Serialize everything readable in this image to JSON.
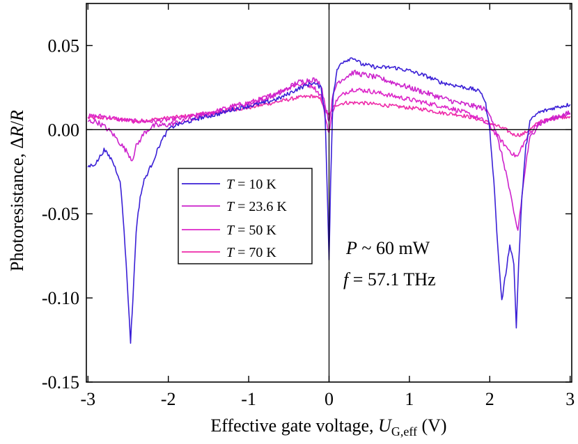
{
  "chart_data": {
    "type": "line",
    "xlabel": {
      "prefix": "Effective gate voltage, ",
      "var": "U",
      "sub": "G,eff",
      "suffix": " (V)"
    },
    "ylabel": {
      "prefix": "Photoresistance, Δ",
      "var1": "R",
      "slash": "/",
      "var2": "R"
    },
    "xlim": [
      -3.02,
      3.02
    ],
    "ylim": [
      -0.15,
      0.075
    ],
    "xticks": [
      -3,
      -2,
      -1,
      0,
      1,
      2,
      3
    ],
    "xtick_labels": [
      "-3",
      "-2",
      "-1",
      "0",
      "1",
      "2",
      "3"
    ],
    "yticks": [
      -0.15,
      -0.1,
      -0.05,
      0.0,
      0.05
    ],
    "ytick_labels": [
      "-0.15",
      "-0.10",
      "-0.05",
      "0.00",
      "0.05"
    ],
    "grid": false,
    "reference_lines": {
      "y": 0.0,
      "x": 0.0
    },
    "legend_placement": "center-left",
    "annotations": [
      {
        "var": "P",
        "text": " ~ 60 mW"
      },
      {
        "var": "f",
        "text": " = 57.1 THz"
      }
    ],
    "series": [
      {
        "name": "T = 10 K",
        "label_var": "T",
        "label_rest": " = 10 K",
        "color": "#3a1fd6",
        "x": [
          -3.0,
          -2.9,
          -2.8,
          -2.7,
          -2.6,
          -2.55,
          -2.5,
          -2.47,
          -2.44,
          -2.4,
          -2.35,
          -2.3,
          -2.2,
          -2.1,
          -2.0,
          -1.9,
          -1.8,
          -1.6,
          -1.4,
          -1.2,
          -1.0,
          -0.8,
          -0.6,
          -0.4,
          -0.2,
          -0.1,
          -0.05,
          -0.02,
          0.0,
          0.02,
          0.05,
          0.1,
          0.15,
          0.2,
          0.3,
          0.4,
          0.6,
          0.8,
          1.0,
          1.2,
          1.4,
          1.6,
          1.8,
          1.9,
          1.95,
          2.0,
          2.05,
          2.1,
          2.15,
          2.2,
          2.25,
          2.3,
          2.33,
          2.36,
          2.4,
          2.45,
          2.5,
          2.6,
          2.8,
          3.0
        ],
        "values": [
          -0.022,
          -0.02,
          -0.012,
          -0.018,
          -0.03,
          -0.06,
          -0.1,
          -0.126,
          -0.1,
          -0.06,
          -0.04,
          -0.03,
          -0.02,
          -0.008,
          0.0,
          0.003,
          0.004,
          0.007,
          0.009,
          0.012,
          0.014,
          0.016,
          0.019,
          0.024,
          0.028,
          0.025,
          0.01,
          -0.04,
          -0.077,
          -0.03,
          0.02,
          0.035,
          0.04,
          0.041,
          0.043,
          0.039,
          0.037,
          0.037,
          0.035,
          0.032,
          0.028,
          0.026,
          0.024,
          0.022,
          0.015,
          0.0,
          -0.03,
          -0.07,
          -0.102,
          -0.085,
          -0.068,
          -0.08,
          -0.117,
          -0.08,
          -0.04,
          -0.01,
          0.005,
          0.01,
          0.013,
          0.015
        ]
      },
      {
        "name": "T = 23.6 K",
        "label_var": "T",
        "label_rest": " = 23.6 K",
        "color": "#cc22cc",
        "x": [
          -3.0,
          -2.9,
          -2.8,
          -2.7,
          -2.6,
          -2.5,
          -2.45,
          -2.4,
          -2.3,
          -2.2,
          -2.0,
          -1.8,
          -1.6,
          -1.4,
          -1.2,
          -1.0,
          -0.8,
          -0.6,
          -0.4,
          -0.2,
          -0.1,
          -0.05,
          0.0,
          0.05,
          0.1,
          0.2,
          0.3,
          0.4,
          0.6,
          0.8,
          1.0,
          1.2,
          1.4,
          1.6,
          1.8,
          1.9,
          2.0,
          2.05,
          2.1,
          2.15,
          2.2,
          2.25,
          2.3,
          2.35,
          2.4,
          2.45,
          2.5,
          2.6,
          2.8,
          3.0
        ],
        "values": [
          0.005,
          0.005,
          0.002,
          -0.002,
          -0.008,
          -0.014,
          -0.018,
          -0.01,
          -0.002,
          0.002,
          0.003,
          0.005,
          0.008,
          0.01,
          0.013,
          0.015,
          0.018,
          0.022,
          0.028,
          0.03,
          0.027,
          0.015,
          0.005,
          0.02,
          0.028,
          0.031,
          0.034,
          0.033,
          0.031,
          0.028,
          0.025,
          0.022,
          0.019,
          0.016,
          0.014,
          0.013,
          0.01,
          0.003,
          -0.006,
          -0.015,
          -0.025,
          -0.037,
          -0.05,
          -0.06,
          -0.04,
          -0.02,
          -0.005,
          0.003,
          0.007,
          0.01
        ]
      },
      {
        "name": "T = 50 K",
        "label_var": "T",
        "label_rest": " = 50 K",
        "color": "#dd25c8",
        "x": [
          -3.0,
          -2.8,
          -2.6,
          -2.4,
          -2.2,
          -2.0,
          -1.8,
          -1.6,
          -1.4,
          -1.2,
          -1.0,
          -0.8,
          -0.6,
          -0.4,
          -0.2,
          -0.1,
          -0.05,
          0.0,
          0.05,
          0.1,
          0.2,
          0.3,
          0.5,
          0.7,
          0.9,
          1.1,
          1.3,
          1.5,
          1.7,
          1.9,
          2.0,
          2.1,
          2.2,
          2.3,
          2.35,
          2.4,
          2.5,
          2.6,
          2.8,
          3.0
        ],
        "values": [
          0.008,
          0.008,
          0.006,
          0.005,
          0.005,
          0.006,
          0.007,
          0.009,
          0.011,
          0.014,
          0.016,
          0.019,
          0.023,
          0.027,
          0.026,
          0.02,
          0.008,
          -0.002,
          0.012,
          0.018,
          0.022,
          0.024,
          0.023,
          0.021,
          0.019,
          0.017,
          0.015,
          0.013,
          0.01,
          0.006,
          0.002,
          -0.004,
          -0.01,
          -0.015,
          -0.016,
          -0.01,
          -0.002,
          0.004,
          0.007,
          0.009
        ]
      },
      {
        "name": "T = 70 K",
        "label_var": "T",
        "label_rest": " = 70 K",
        "color": "#ee2aa8",
        "x": [
          -3.0,
          -2.8,
          -2.6,
          -2.4,
          -2.2,
          -2.0,
          -1.8,
          -1.6,
          -1.4,
          -1.2,
          -1.0,
          -0.8,
          -0.6,
          -0.4,
          -0.2,
          -0.1,
          -0.05,
          0.0,
          0.05,
          0.1,
          0.2,
          0.4,
          0.6,
          0.8,
          1.0,
          1.2,
          1.4,
          1.6,
          1.8,
          2.0,
          2.1,
          2.2,
          2.3,
          2.4,
          2.5,
          2.6,
          2.8,
          3.0
        ],
        "values": [
          0.007,
          0.007,
          0.006,
          0.005,
          0.006,
          0.007,
          0.008,
          0.009,
          0.01,
          0.012,
          0.013,
          0.015,
          0.017,
          0.019,
          0.02,
          0.018,
          0.012,
          0.008,
          0.013,
          0.015,
          0.016,
          0.016,
          0.015,
          0.014,
          0.013,
          0.012,
          0.01,
          0.009,
          0.007,
          0.004,
          0.002,
          0.0,
          -0.003,
          -0.003,
          0.0,
          0.004,
          0.007,
          0.008
        ]
      }
    ]
  }
}
